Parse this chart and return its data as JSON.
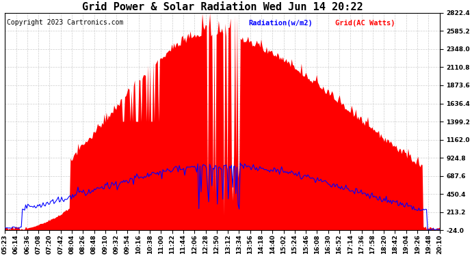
{
  "title": "Grid Power & Solar Radiation Wed Jun 14 20:22",
  "copyright": "Copyright 2023 Cartronics.com",
  "legend_radiation": "Radiation(w/m2)",
  "legend_grid": "Grid(AC Watts)",
  "radiation_color": "blue",
  "grid_color": "red",
  "background_color": "white",
  "ymin": -24.0,
  "ymax": 2822.4,
  "yticks": [
    -24.0,
    213.2,
    450.4,
    687.6,
    924.8,
    1162.0,
    1399.2,
    1636.4,
    1873.6,
    2110.8,
    2348.0,
    2585.2,
    2822.4
  ],
  "x_labels": [
    "05:23",
    "06:14",
    "06:36",
    "07:08",
    "07:20",
    "07:42",
    "08:04",
    "08:26",
    "08:48",
    "09:10",
    "09:32",
    "09:54",
    "10:16",
    "10:38",
    "11:00",
    "11:22",
    "11:44",
    "12:06",
    "12:28",
    "12:50",
    "13:12",
    "13:34",
    "13:56",
    "14:18",
    "14:40",
    "15:02",
    "15:24",
    "15:46",
    "16:08",
    "16:30",
    "16:52",
    "17:14",
    "17:36",
    "17:58",
    "18:20",
    "18:42",
    "19:04",
    "19:26",
    "19:48",
    "20:10"
  ],
  "grid_dash": "--",
  "grid_lw": 0.5,
  "grid_col": "#cccccc",
  "title_fontsize": 11,
  "tick_fontsize": 6.5,
  "copyright_fontsize": 7,
  "legend_fontsize": 7.5
}
